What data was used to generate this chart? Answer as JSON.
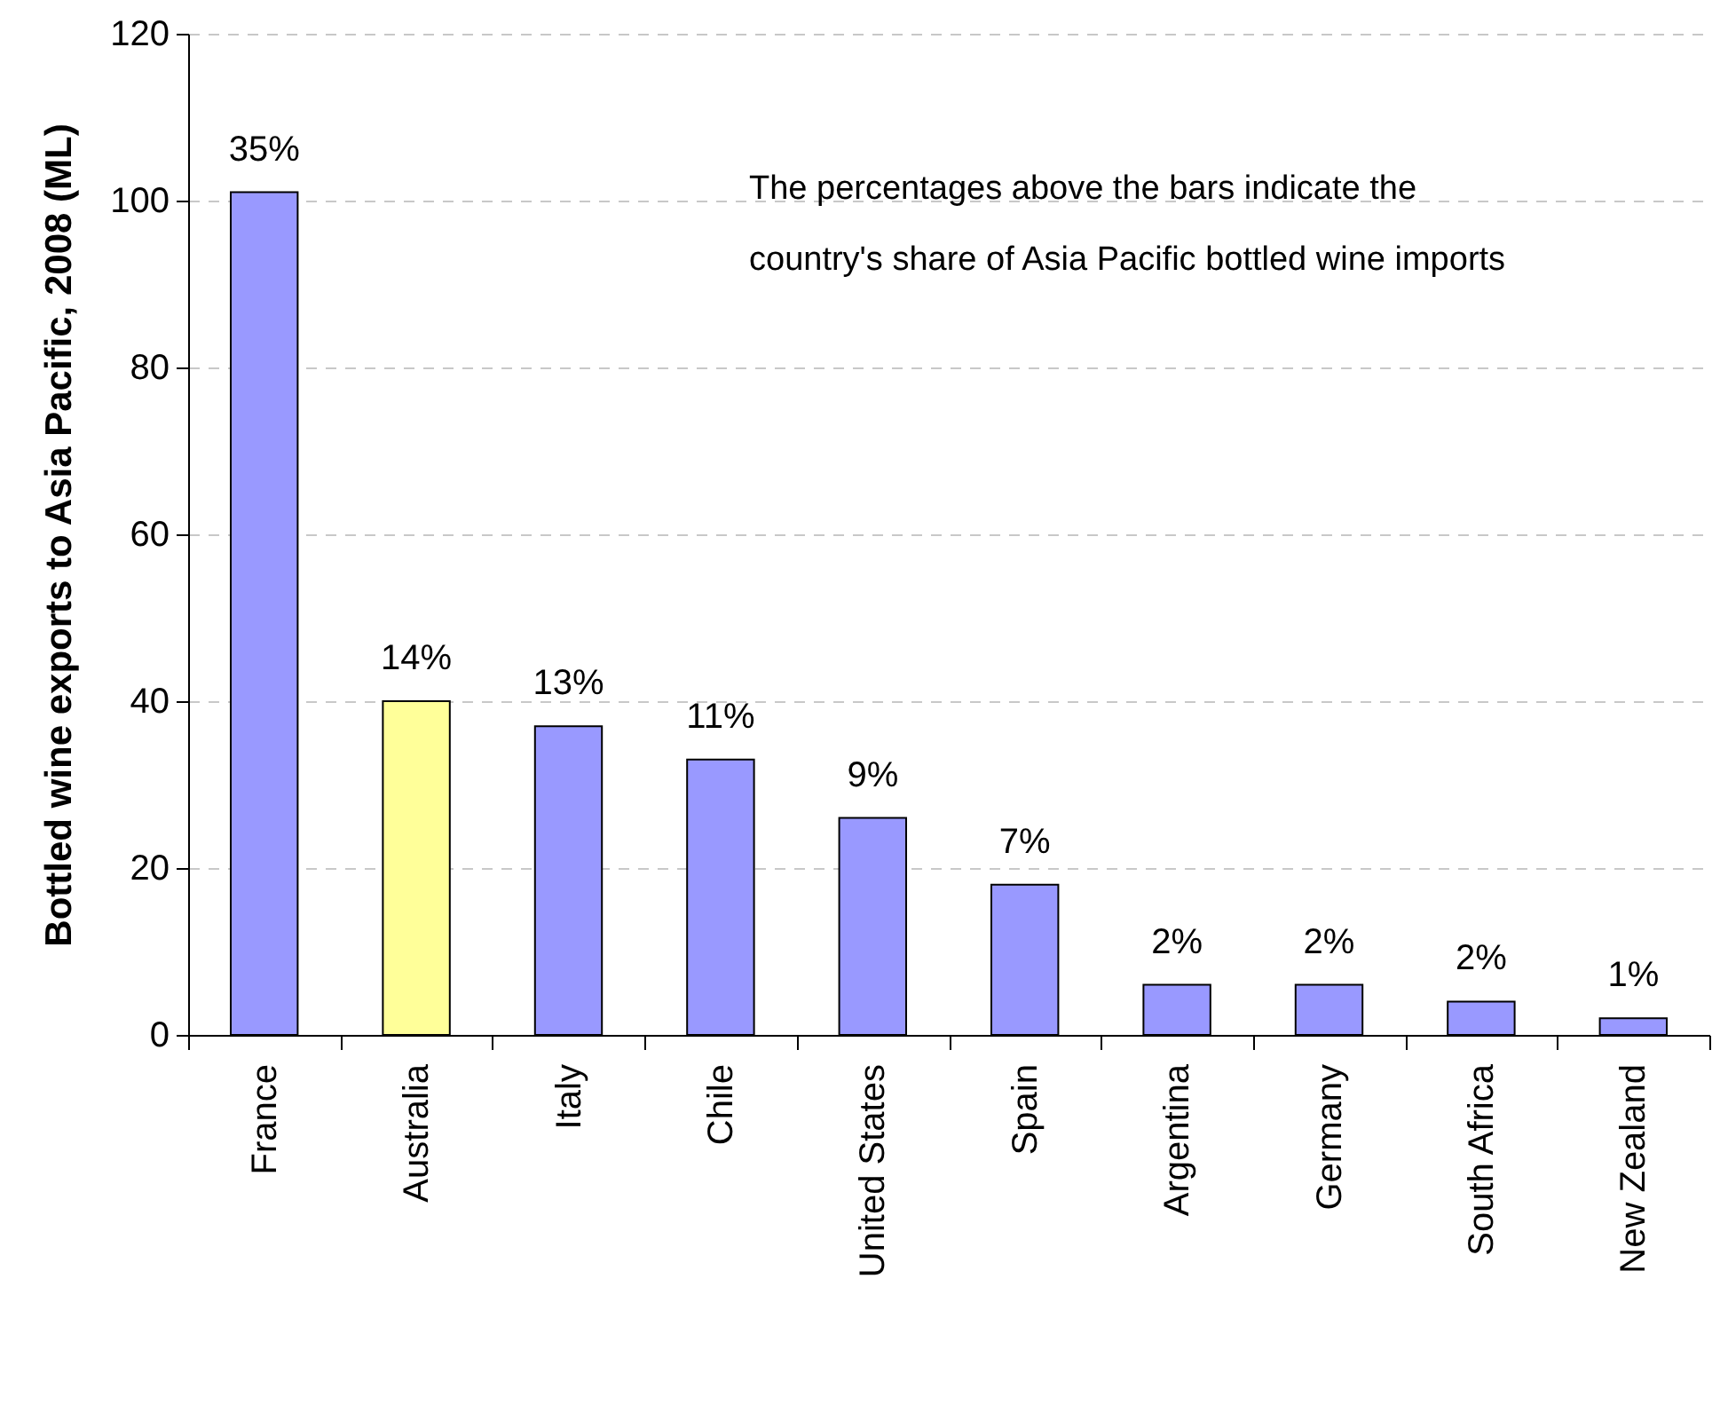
{
  "chart_data": {
    "type": "bar",
    "ylabel": "Bottled wine exports to Asia Pacific, 2008 (ML)",
    "annotations": [
      "The percentages above the bars indicate the country's share of Asia Pacific bottled wine imports",
      {
        "text": "35%",
        "x": "France",
        "y": 101
      },
      {
        "text": "14%",
        "x": "Australia",
        "y": 40
      },
      {
        "text": "13%",
        "x": "Italy",
        "y": 37
      },
      {
        "text": "11%",
        "x": "Chile",
        "y": 33
      },
      {
        "text": "9%",
        "x": "United States",
        "y": 26
      },
      {
        "text": "7%",
        "x": "Spain",
        "y": 18
      },
      {
        "text": "2%",
        "x": "Argentina",
        "y": 6
      },
      {
        "text": "2%",
        "x": "Germany",
        "y": 6
      },
      {
        "text": "2%",
        "x": "South Africa",
        "y": 4
      },
      {
        "text": "1%",
        "x": "New Zealand",
        "y": 2
      }
    ],
    "categories": [
      "France",
      "Australia",
      "Italy",
      "Chile",
      "United States",
      "Spain",
      "Argentina",
      "Germany",
      "South Africa",
      "New Zealand"
    ],
    "values": [
      101,
      40,
      37,
      33,
      26,
      18,
      6,
      6,
      4,
      2
    ],
    "colors": [
      "#9999ff",
      "#ffff99",
      "#9999ff",
      "#9999ff",
      "#9999ff",
      "#9999ff",
      "#9999ff",
      "#9999ff",
      "#9999ff",
      "#9999ff"
    ],
    "ylim": [
      0,
      120
    ],
    "yticks": [
      0,
      20,
      40,
      60,
      80,
      100,
      120
    ],
    "grid": "y"
  }
}
